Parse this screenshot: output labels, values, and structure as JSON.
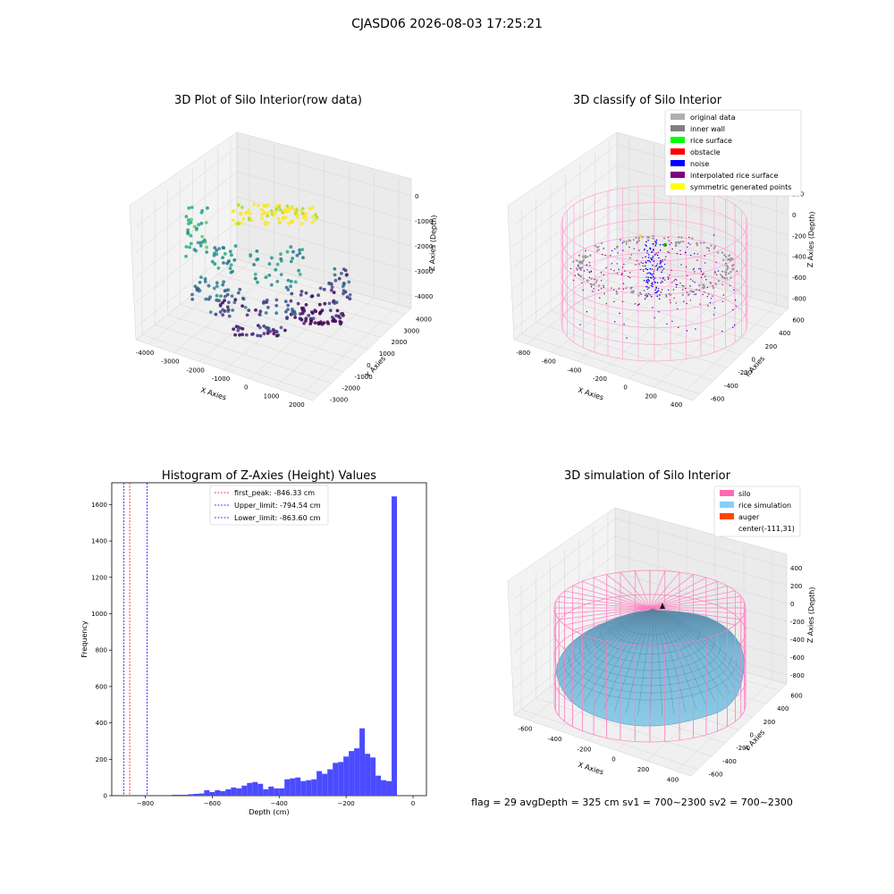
{
  "suptitle": "CJASD06 2026-08-03 17:25:21",
  "footer": "flag = 29  avgDepth = 325 cm  sv1 = 700~2300  sv2 = 700~2300",
  "chart_data": [
    {
      "type": "scatter",
      "title": "3D Plot of Silo Interior(row data)",
      "xlabel": "X Axies",
      "ylabel": "Y Axies",
      "zlabel": "Z Axies (Depth)",
      "xticks": [
        "-4000",
        "-3000",
        "-2000",
        "-1000",
        "0",
        "1000",
        "2000"
      ],
      "yticks": [
        "-3000",
        "-2000",
        "-1000",
        "0",
        "1000",
        "2000",
        "3000",
        "4000"
      ],
      "zticks": [
        "0",
        "-1000",
        "-2000",
        "-3000",
        "-4000"
      ],
      "colormap": "viridis"
    },
    {
      "type": "scatter",
      "title": "3D classify of Silo Interior",
      "xlabel": "X Axies",
      "ylabel": "Y Axies",
      "zlabel": "Z Axies (Depth)",
      "xticks": [
        "-800",
        "-600",
        "-400",
        "-200",
        "0",
        "200",
        "400"
      ],
      "yticks": [
        "-600",
        "-400",
        "-200",
        "0",
        "200",
        "400",
        "600"
      ],
      "zticks": [
        "200",
        "0",
        "-200",
        "-400",
        "-600",
        "-800"
      ],
      "legend": [
        {
          "label": "original data",
          "color": "#b0b0b0"
        },
        {
          "label": "inner wall",
          "color": "#808080"
        },
        {
          "label": "rice surface",
          "color": "#00ff00"
        },
        {
          "label": "obstacle",
          "color": "#ff0000"
        },
        {
          "label": "noise",
          "color": "#0000ff"
        },
        {
          "label": "interpolated rice surface",
          "color": "#800080"
        },
        {
          "label": "symmetric generated points",
          "color": "#ffff00"
        }
      ],
      "legend_position": "top-right"
    },
    {
      "type": "bar",
      "title": "Histogram of Z-Axies (Height) Values",
      "xlabel": "Depth (cm)",
      "ylabel": "Frequency",
      "xlim": [
        -900,
        40
      ],
      "ylim": [
        0,
        1720
      ],
      "xticks": [
        -800,
        -600,
        -400,
        -200,
        0
      ],
      "yticks": [
        0,
        200,
        400,
        600,
        800,
        1000,
        1200,
        1400,
        1600
      ],
      "bin_width": 16,
      "bins_left": [
        -720,
        -704,
        -688,
        -672,
        -656,
        -640,
        -624,
        -608,
        -592,
        -576,
        -560,
        -544,
        -528,
        -512,
        -496,
        -480,
        -464,
        -448,
        -432,
        -416,
        -400,
        -384,
        -368,
        -352,
        -336,
        -320,
        -304,
        -288,
        -272,
        -256,
        -240,
        -224,
        -208,
        -192,
        -176,
        -160,
        -144,
        -128,
        -112,
        -96,
        -80,
        -64,
        -48,
        -32,
        -16
      ],
      "values": [
        5,
        5,
        5,
        8,
        10,
        12,
        30,
        20,
        30,
        25,
        35,
        45,
        40,
        55,
        70,
        75,
        65,
        35,
        50,
        40,
        40,
        90,
        95,
        100,
        80,
        85,
        90,
        135,
        120,
        145,
        180,
        185,
        215,
        245,
        260,
        370,
        230,
        210,
        110,
        85,
        80,
        1645,
        0,
        0,
        0
      ],
      "lines": [
        {
          "label": "first_peak: -846.33 cm",
          "x": -846.33,
          "color": "#ff0000"
        },
        {
          "label": "Upper_limit: -794.54 cm",
          "x": -794.54,
          "color": "#0000ff"
        },
        {
          "label": "Lower_limit: -863.60 cm",
          "x": -863.6,
          "color": "#0000ff"
        }
      ],
      "bar_color": "#4b4bff",
      "legend_position": "top-center"
    },
    {
      "type": "surface",
      "title": "3D simulation of Silo Interior",
      "xlabel": "X Axies",
      "ylabel": "Y Axies",
      "zlabel": "Z Axies (Depth)",
      "xticks": [
        "-600",
        "-400",
        "-200",
        "0",
        "200",
        "400"
      ],
      "yticks": [
        "-600",
        "-400",
        "-200",
        "0",
        "200",
        "400",
        "600"
      ],
      "zticks": [
        "400",
        "200",
        "0",
        "-200",
        "-400",
        "-600",
        "-800"
      ],
      "legend": [
        {
          "label": "silo",
          "color": "#ff69b4"
        },
        {
          "label": "rice simulation",
          "color": "#87cefa"
        },
        {
          "label": "auger",
          "color": "#ff4500"
        },
        {
          "label": "center(-111,31)",
          "color": ""
        }
      ],
      "legend_position": "top-right"
    }
  ]
}
